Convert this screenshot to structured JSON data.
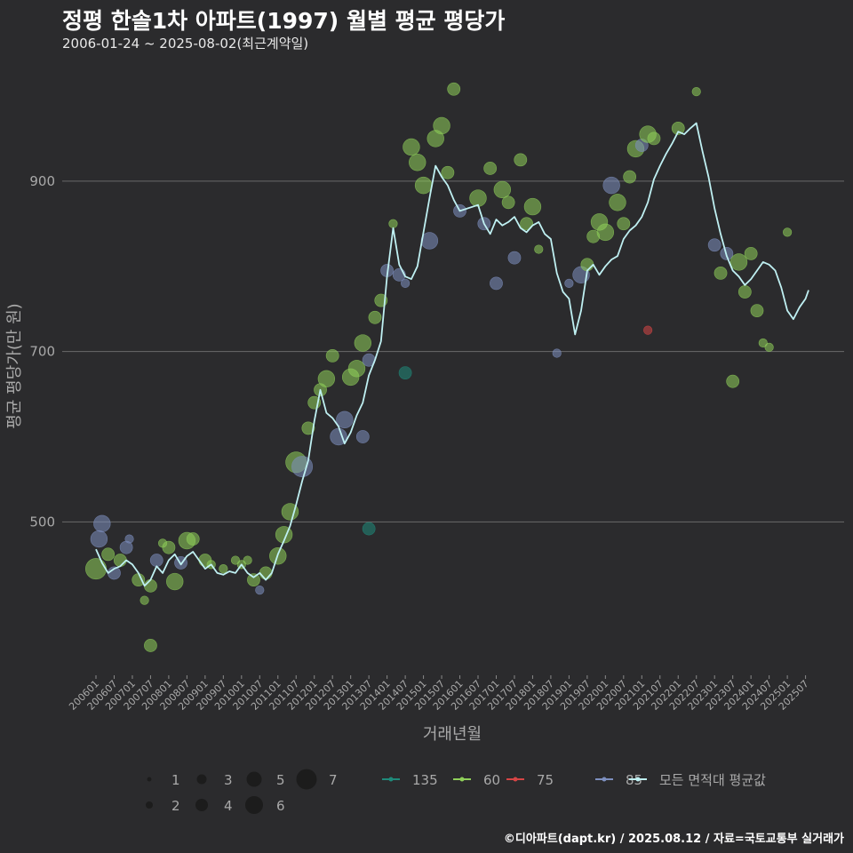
{
  "header": {
    "title": "정평 한솔1차 아파트(1997) 월별 평균 평당가",
    "subtitle": "2006-01-24 ~ 2025-08-02(최근계약일)"
  },
  "caption": "©디아파트(dapt.kr) / 2025.08.12 / 자료=국토교통부 실거래가",
  "colors": {
    "background": "#2b2b2d",
    "gridline": "#6a6a6a",
    "avg_line": "#bff0f2",
    "area_135": "#1f8a7a",
    "area_60": "#8fcf5a",
    "area_75": "#d64545",
    "area_85": "#7d8fbf"
  },
  "chart_data": {
    "type": "scatter",
    "title": "정평 한솔1차 아파트(1997) 월별 평균 평당가",
    "xlabel": "거래년월",
    "ylabel": "평균 평당가(만 원)",
    "ylim": [
      320,
      1050
    ],
    "yticks": [
      500,
      700,
      900
    ],
    "xticks": [
      "200601",
      "200607",
      "200701",
      "200707",
      "200801",
      "200807",
      "200901",
      "200907",
      "201001",
      "201007",
      "201101",
      "201107",
      "201201",
      "201207",
      "201301",
      "201307",
      "201401",
      "201407",
      "201501",
      "201507",
      "201601",
      "201607",
      "201701",
      "201707",
      "201801",
      "201807",
      "201901",
      "201907",
      "202001",
      "202007",
      "202101",
      "202107",
      "202201",
      "202207",
      "202301",
      "202307",
      "202401",
      "202407",
      "202501",
      "202507"
    ],
    "size_legend": [
      "1",
      "2",
      "3",
      "4",
      "5",
      "6",
      "7"
    ],
    "color_legend": [
      {
        "name": "135",
        "color": "#1f8a7a"
      },
      {
        "name": "60",
        "color": "#8fcf5a"
      },
      {
        "name": "75",
        "color": "#d64545"
      },
      {
        "name": "85",
        "color": "#7d8fbf"
      },
      {
        "name": "모든 면적대 평균값",
        "color": "#bff0f2"
      }
    ],
    "average_line": [
      [
        "200601",
        468
      ],
      [
        "200603",
        452
      ],
      [
        "200605",
        440
      ],
      [
        "200607",
        445
      ],
      [
        "200609",
        448
      ],
      [
        "200611",
        455
      ],
      [
        "200701",
        450
      ],
      [
        "200703",
        440
      ],
      [
        "200705",
        425
      ],
      [
        "200707",
        432
      ],
      [
        "200709",
        448
      ],
      [
        "200711",
        440
      ],
      [
        "200801",
        455
      ],
      [
        "200803",
        462
      ],
      [
        "200805",
        450
      ],
      [
        "200807",
        460
      ],
      [
        "200809",
        465
      ],
      [
        "200811",
        455
      ],
      [
        "200901",
        445
      ],
      [
        "200903",
        450
      ],
      [
        "200905",
        440
      ],
      [
        "200907",
        438
      ],
      [
        "200909",
        442
      ],
      [
        "200911",
        440
      ],
      [
        "201001",
        450
      ],
      [
        "201003",
        440
      ],
      [
        "201005",
        435
      ],
      [
        "201007",
        440
      ],
      [
        "201009",
        432
      ],
      [
        "201011",
        440
      ],
      [
        "201101",
        462
      ],
      [
        "201103",
        478
      ],
      [
        "201105",
        495
      ],
      [
        "201107",
        520
      ],
      [
        "201109",
        548
      ],
      [
        "201111",
        572
      ],
      [
        "201201",
        618
      ],
      [
        "201203",
        655
      ],
      [
        "201205",
        628
      ],
      [
        "201207",
        622
      ],
      [
        "201209",
        612
      ],
      [
        "201211",
        592
      ],
      [
        "201301",
        605
      ],
      [
        "201303",
        625
      ],
      [
        "201305",
        640
      ],
      [
        "201307",
        672
      ],
      [
        "201309",
        690
      ],
      [
        "201311",
        712
      ],
      [
        "201401",
        788
      ],
      [
        "201403",
        845
      ],
      [
        "201405",
        802
      ],
      [
        "201407",
        788
      ],
      [
        "201409",
        785
      ],
      [
        "201411",
        800
      ],
      [
        "201501",
        840
      ],
      [
        "201503",
        880
      ],
      [
        "201505",
        918
      ],
      [
        "201507",
        905
      ],
      [
        "201509",
        895
      ],
      [
        "201511",
        878
      ],
      [
        "201601",
        865
      ],
      [
        "201607",
        872
      ],
      [
        "201609",
        850
      ],
      [
        "201611",
        838
      ],
      [
        "201701",
        855
      ],
      [
        "201703",
        848
      ],
      [
        "201705",
        852
      ],
      [
        "201707",
        858
      ],
      [
        "201709",
        845
      ],
      [
        "201711",
        840
      ],
      [
        "201801",
        848
      ],
      [
        "201803",
        852
      ],
      [
        "201805",
        838
      ],
      [
        "201807",
        832
      ],
      [
        "201809",
        792
      ],
      [
        "201811",
        770
      ],
      [
        "201901",
        762
      ],
      [
        "201903",
        720
      ],
      [
        "201905",
        748
      ],
      [
        "201907",
        795
      ],
      [
        "201909",
        802
      ],
      [
        "201911",
        790
      ],
      [
        "202001",
        800
      ],
      [
        "202003",
        808
      ],
      [
        "202005",
        812
      ],
      [
        "202007",
        832
      ],
      [
        "202009",
        842
      ],
      [
        "202011",
        848
      ],
      [
        "202101",
        858
      ],
      [
        "202103",
        875
      ],
      [
        "202105",
        902
      ],
      [
        "202107",
        918
      ],
      [
        "202109",
        932
      ],
      [
        "202111",
        944
      ],
      [
        "202201",
        958
      ],
      [
        "202203",
        955
      ],
      [
        "202205",
        962
      ],
      [
        "202207",
        968
      ],
      [
        "202209",
        935
      ],
      [
        "202211",
        905
      ],
      [
        "202301",
        868
      ],
      [
        "202303",
        838
      ],
      [
        "202305",
        812
      ],
      [
        "202307",
        795
      ],
      [
        "202309",
        788
      ],
      [
        "202311",
        778
      ],
      [
        "202401",
        785
      ],
      [
        "202403",
        795
      ],
      [
        "202405",
        805
      ],
      [
        "202407",
        802
      ],
      [
        "202409",
        795
      ],
      [
        "202411",
        775
      ],
      [
        "202501",
        748
      ],
      [
        "202503",
        738
      ],
      [
        "202505",
        752
      ],
      [
        "202507",
        762
      ],
      [
        "202508",
        772
      ]
    ],
    "points": [
      [
        "200601",
        445,
        "60",
        5
      ],
      [
        "200602",
        480,
        "85",
        4
      ],
      [
        "200603",
        498,
        "85",
        4
      ],
      [
        "200605",
        462,
        "60",
        3
      ],
      [
        "200607",
        440,
        "85",
        3
      ],
      [
        "200609",
        455,
        "60",
        3
      ],
      [
        "200611",
        470,
        "85",
        3
      ],
      [
        "200612",
        480,
        "85",
        2
      ],
      [
        "200703",
        432,
        "60",
        3
      ],
      [
        "200705",
        408,
        "60",
        2
      ],
      [
        "200707",
        425,
        "60",
        3
      ],
      [
        "200709",
        455,
        "85",
        3
      ],
      [
        "200711",
        475,
        "60",
        2
      ],
      [
        "200801",
        470,
        "60",
        3
      ],
      [
        "200803",
        430,
        "60",
        4
      ],
      [
        "200805",
        452,
        "85",
        3
      ],
      [
        "200807",
        478,
        "60",
        4
      ],
      [
        "200809",
        480,
        "60",
        3
      ],
      [
        "200901",
        455,
        "60",
        3
      ],
      [
        "200903",
        450,
        "60",
        2
      ],
      [
        "200907",
        445,
        "60",
        2
      ],
      [
        "200911",
        455,
        "60",
        2
      ],
      [
        "201001",
        450,
        "60",
        2
      ],
      [
        "201003",
        455,
        "60",
        2
      ],
      [
        "201005",
        432,
        "60",
        3
      ],
      [
        "201007",
        420,
        "85",
        2
      ],
      [
        "201009",
        440,
        "60",
        3
      ],
      [
        "201101",
        460,
        "60",
        4
      ],
      [
        "201103",
        485,
        "60",
        4
      ],
      [
        "201105",
        512,
        "60",
        4
      ],
      [
        "201107",
        570,
        "60",
        5
      ],
      [
        "201109",
        565,
        "85",
        5
      ],
      [
        "201111",
        610,
        "60",
        3
      ],
      [
        "201201",
        640,
        "60",
        3
      ],
      [
        "201203",
        655,
        "60",
        3
      ],
      [
        "201205",
        668,
        "60",
        4
      ],
      [
        "201207",
        695,
        "60",
        3
      ],
      [
        "201209",
        600,
        "85",
        4
      ],
      [
        "201211",
        620,
        "85",
        4
      ],
      [
        "201301",
        670,
        "60",
        4
      ],
      [
        "201303",
        680,
        "60",
        4
      ],
      [
        "201305",
        710,
        "60",
        4
      ],
      [
        "201307",
        690,
        "85",
        3
      ],
      [
        "201309",
        740,
        "60",
        3
      ],
      [
        "201311",
        760,
        "60",
        3
      ],
      [
        "201401",
        795,
        "85",
        3
      ],
      [
        "201403",
        850,
        "60",
        2
      ],
      [
        "201405",
        790,
        "85",
        3
      ],
      [
        "201407",
        780,
        "85",
        2
      ],
      [
        "201409",
        940,
        "60",
        4
      ],
      [
        "201411",
        922,
        "60",
        4
      ],
      [
        "201501",
        895,
        "60",
        4
      ],
      [
        "201503",
        830,
        "85",
        4
      ],
      [
        "201505",
        950,
        "60",
        4
      ],
      [
        "201507",
        965,
        "60",
        4
      ],
      [
        "201509",
        910,
        "60",
        3
      ],
      [
        "201511",
        1008,
        "60",
        3
      ],
      [
        "201601",
        865,
        "85",
        3
      ],
      [
        "201607",
        880,
        "60",
        4
      ],
      [
        "201609",
        850,
        "85",
        3
      ],
      [
        "201611",
        915,
        "60",
        3
      ],
      [
        "201701",
        780,
        "85",
        3
      ],
      [
        "201703",
        890,
        "60",
        4
      ],
      [
        "201705",
        875,
        "60",
        3
      ],
      [
        "201707",
        810,
        "85",
        3
      ],
      [
        "201709",
        925,
        "60",
        3
      ],
      [
        "201711",
        850,
        "60",
        3
      ],
      [
        "201801",
        870,
        "60",
        4
      ],
      [
        "201803",
        820,
        "60",
        2
      ],
      [
        "201809",
        698,
        "85",
        2
      ],
      [
        "201901",
        780,
        "85",
        2
      ],
      [
        "201905",
        790,
        "85",
        4
      ],
      [
        "201907",
        802,
        "60",
        3
      ],
      [
        "201909",
        835,
        "60",
        3
      ],
      [
        "201911",
        852,
        "60",
        4
      ],
      [
        "202001",
        840,
        "60",
        4
      ],
      [
        "202003",
        895,
        "85",
        4
      ],
      [
        "202005",
        875,
        "60",
        4
      ],
      [
        "202007",
        850,
        "60",
        3
      ],
      [
        "202009",
        905,
        "60",
        3
      ],
      [
        "202011",
        938,
        "60",
        4
      ],
      [
        "202101",
        942,
        "85",
        3
      ],
      [
        "202103",
        955,
        "60",
        4
      ],
      [
        "202105",
        950,
        "60",
        3
      ],
      [
        "202201",
        962,
        "60",
        3
      ],
      [
        "202207",
        1005,
        "60",
        2
      ],
      [
        "202301",
        825,
        "85",
        3
      ],
      [
        "202303",
        792,
        "60",
        3
      ],
      [
        "202305",
        815,
        "85",
        3
      ],
      [
        "202307",
        665,
        "60",
        3
      ],
      [
        "202309",
        805,
        "60",
        4
      ],
      [
        "202311",
        770,
        "60",
        3
      ],
      [
        "202401",
        815,
        "60",
        3
      ],
      [
        "202403",
        748,
        "60",
        3
      ],
      [
        "202405",
        710,
        "60",
        2
      ],
      [
        "202407",
        705,
        "60",
        2
      ],
      [
        "202501",
        840,
        "60",
        2
      ],
      [
        "201307",
        492,
        "135",
        3
      ],
      [
        "201407",
        675,
        "135",
        3
      ],
      [
        "200707",
        355,
        "60",
        3
      ],
      [
        "201305",
        600,
        "85",
        3
      ],
      [
        "202103",
        725,
        "75",
        2
      ]
    ]
  }
}
